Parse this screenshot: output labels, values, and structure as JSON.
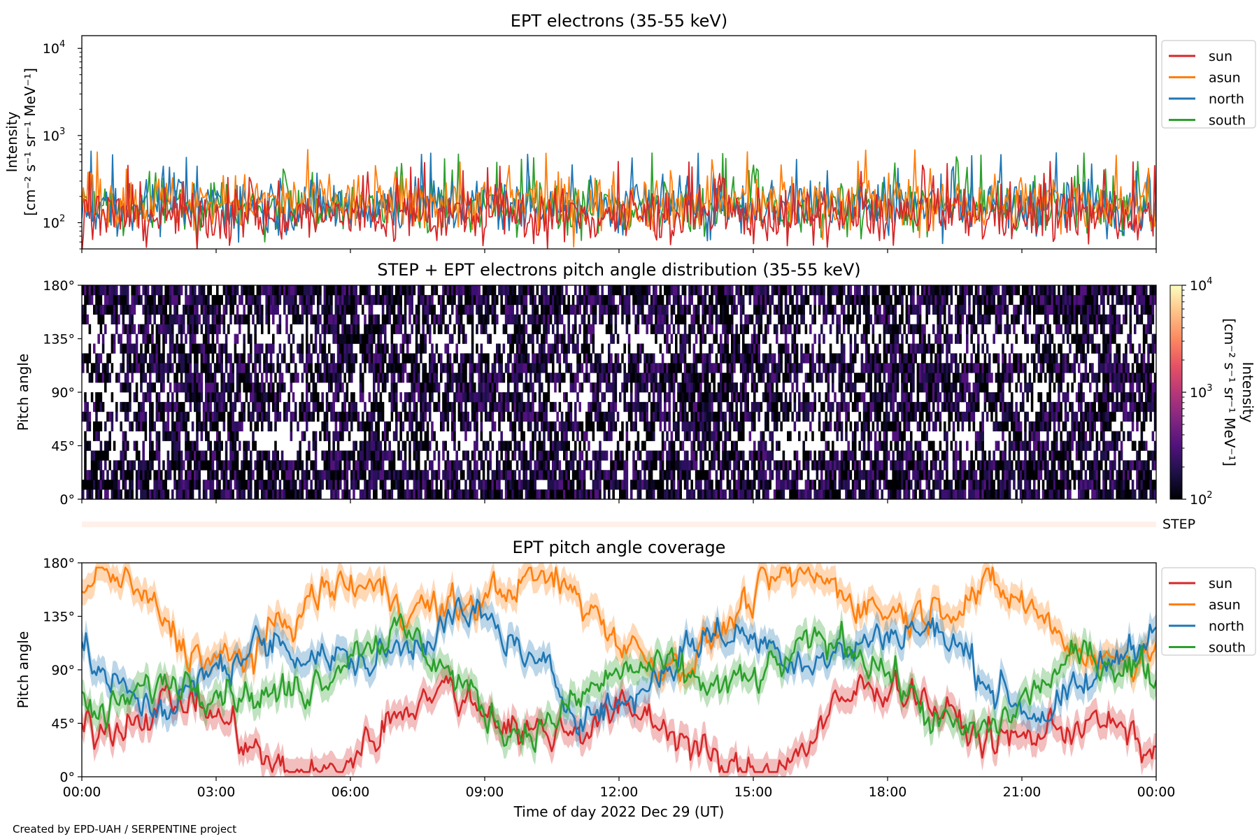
{
  "credit": "Created by EPD-UAH / SERPENTINE project",
  "chart_data": [
    {
      "type": "line",
      "title": "EPT electrons (35-55 keV)",
      "ylabel_line1": "Intensity",
      "ylabel_line2": "[cm⁻² s⁻¹ sr⁻¹ MeV⁻¹]",
      "yscale": "log",
      "ylim": [
        50,
        14000
      ],
      "yticks": [
        {
          "exp": "2",
          "value": 100
        },
        {
          "exp": "3",
          "value": 1000
        },
        {
          "exp": "4",
          "value": 10000
        }
      ],
      "legend_position": "outside-right-top",
      "series": [
        {
          "name": "sun",
          "color": "#d62728",
          "typical": 120
        },
        {
          "name": "asun",
          "color": "#ff7f0e",
          "typical": 170
        },
        {
          "name": "north",
          "color": "#1f77b4",
          "typical": 160
        },
        {
          "name": "south",
          "color": "#2ca02c",
          "typical": 150
        }
      ],
      "draw_order": [
        "south",
        "north",
        "asun",
        "sun"
      ]
    },
    {
      "type": "heatmap",
      "title": "STEP + EPT electrons pitch angle distribution (35-55 keV)",
      "ylabel": "Pitch angle",
      "ylim": [
        0,
        180
      ],
      "yticks": [
        "0°",
        "45°",
        "90°",
        "135°",
        "180°"
      ],
      "colorbar": {
        "label_line1": "Intensity",
        "label_line2": "[cm⁻² s⁻¹ sr⁻¹ MeV⁻¹]",
        "scale": "log",
        "range": [
          100,
          10000
        ],
        "ticks": [
          {
            "exp": "2",
            "value": 100
          },
          {
            "exp": "3",
            "value": 1000
          },
          {
            "exp": "4",
            "value": 10000
          }
        ],
        "colormap": [
          "#000004",
          "#1d1147",
          "#51127c",
          "#822681",
          "#b73779",
          "#e75263",
          "#fc8961",
          "#fec287",
          "#fcfdbf"
        ]
      }
    },
    {
      "type": "bar",
      "label": "STEP",
      "color": "#fff1ea"
    },
    {
      "type": "line",
      "title": "EPT pitch angle coverage",
      "ylabel": "Pitch angle",
      "xlabel": "Time of day 2022 Dec 29 (UT)",
      "ylim": [
        0,
        180
      ],
      "yticks": [
        "0°",
        "45°",
        "90°",
        "135°",
        "180°"
      ],
      "xticks": [
        "00:00",
        "03:00",
        "06:00",
        "09:00",
        "12:00",
        "15:00",
        "18:00",
        "21:00",
        "00:00"
      ],
      "legend_position": "outside-right-top",
      "series": [
        {
          "name": "sun",
          "color": "#d62728",
          "typical_deg": 40
        },
        {
          "name": "asun",
          "color": "#ff7f0e",
          "typical_deg": 140
        },
        {
          "name": "north",
          "color": "#1f77b4",
          "typical_deg": 100
        },
        {
          "name": "south",
          "color": "#2ca02c",
          "typical_deg": 80
        }
      ]
    }
  ]
}
